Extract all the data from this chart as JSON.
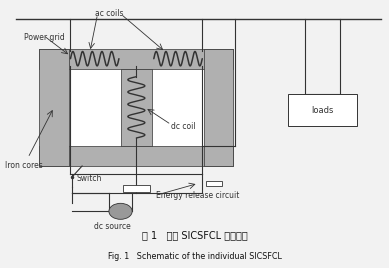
{
  "bg_color": "#f2f2f2",
  "title_cn": "图 1   单相 SICSFCL 的原理图",
  "title_en": "Fig. 1   Schematic of the individual SICSFCL",
  "labels": {
    "power_grid": "Power grid",
    "ac_coils": "ac coils",
    "iron_cores": "Iron cores",
    "switch": "Switch",
    "dc_source": "dc source",
    "dc_coil": "dc coil",
    "energy_release": "Energy release circuit",
    "loads": "loads"
  },
  "colors": {
    "iron_core": "#b0b0b0",
    "coil": "#333333",
    "line": "#333333",
    "background": "#f2f2f2"
  }
}
